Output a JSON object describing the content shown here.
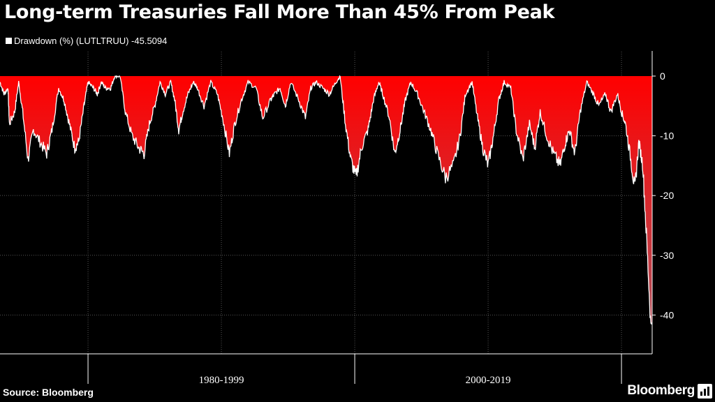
{
  "title": "Long-term Treasuries Fall More Than 45% From Peak",
  "legend": {
    "label": "Drawdown (%) (LUTLTRUU) -45.5094",
    "color": "#ffffff"
  },
  "source": "Source: Bloomberg",
  "brand": {
    "name": "Bloomberg",
    "icon": "bloomberg-terminal-icon"
  },
  "colors": {
    "background": "#000000",
    "line": "#ffffff",
    "fill_top": "#ff0000",
    "fill_bottom": "#b0505a",
    "grid": "#555555"
  },
  "chart_data": {
    "type": "area",
    "title": "Long-term Treasuries Fall More Than 45% From Peak",
    "ylabel": "",
    "xlabel": "",
    "ylim": [
      -46.5,
      0
    ],
    "xlim": [
      1973.4,
      2022.3
    ],
    "yticks": [
      0,
      -10,
      -20,
      -30,
      -40
    ],
    "ytick_labels": [
      "0",
      "-10",
      "-20",
      "-30",
      "-40"
    ],
    "x_groups": [
      {
        "label": "1980-1999",
        "start": 1980,
        "end": 2000
      },
      {
        "label": "2000-2019",
        "start": 2000,
        "end": 2020
      }
    ],
    "x_minor_ticks": [
      1980,
      1990,
      2000,
      2010,
      2020
    ],
    "grid": true,
    "legend_position": "top-left",
    "series": [
      {
        "name": "Drawdown (%) (LUTLTRUU)",
        "last_value": -45.5094,
        "x": [
          1973.4,
          1973.7,
          1974.0,
          1974.1,
          1974.5,
          1974.8,
          1975.1,
          1975.5,
          1975.9,
          1976.4,
          1976.9,
          1977.3,
          1977.8,
          1978.2,
          1978.6,
          1979.0,
          1979.3,
          1979.7,
          1980.0,
          1980.4,
          1980.7,
          1981.0,
          1981.3,
          1981.7,
          1982.0,
          1982.4,
          1982.8,
          1983.3,
          1983.8,
          1984.2,
          1984.6,
          1985.0,
          1985.4,
          1985.8,
          1986.2,
          1986.5,
          1986.8,
          1987.1,
          1987.5,
          1987.9,
          1988.2,
          1988.7,
          1989.2,
          1989.7,
          1990.1,
          1990.6,
          1991.0,
          1991.5,
          1992.0,
          1992.6,
          1993.1,
          1993.7,
          1994.0,
          1994.4,
          1994.8,
          1995.2,
          1995.8,
          1996.3,
          1996.7,
          1997.1,
          1997.6,
          1998.1,
          1998.6,
          1998.9,
          1999.3,
          1999.7,
          2000.1,
          2000.5,
          2001.0,
          2001.4,
          2001.8,
          2002.1,
          2002.6,
          2003.0,
          2003.4,
          2003.8,
          2004.2,
          2004.7,
          2005.2,
          2005.7,
          2006.2,
          2006.8,
          2007.4,
          2007.9,
          2008.3,
          2008.8,
          2009.2,
          2009.6,
          2010.0,
          2010.4,
          2010.8,
          2011.2,
          2011.7,
          2012.1,
          2012.6,
          2013.1,
          2013.5,
          2013.9,
          2014.4,
          2014.9,
          2015.4,
          2015.8,
          2016.1,
          2016.5,
          2016.9,
          2017.4,
          2017.9,
          2018.3,
          2018.8,
          2019.2,
          2019.7,
          2020.0,
          2020.3,
          2020.7,
          2021.0,
          2021.3,
          2021.6,
          2021.9,
          2022.2,
          2022.6,
          2022.9,
          2023.1,
          2023.4,
          2023.8
        ],
        "values": [
          -1,
          -3,
          -2,
          -8,
          -6,
          -1,
          -6,
          -14,
          -9,
          -11,
          -13,
          -9,
          -2,
          -4,
          -8,
          -12,
          -11,
          -5,
          -1,
          -2,
          -3,
          -1,
          -2,
          -2,
          0,
          0,
          -6,
          -10,
          -12,
          -13,
          -8,
          -5,
          -1,
          -3,
          -1,
          -4,
          -9,
          -6,
          -3,
          -1,
          -2,
          -5,
          -1,
          -3,
          -7,
          -13,
          -8,
          -4,
          -1,
          -2,
          -7,
          -4,
          -3,
          -2,
          -5,
          -1,
          -4,
          -7,
          -2,
          -1,
          -2,
          -3,
          -1,
          0,
          -8,
          -14,
          -17,
          -12,
          -9,
          -4,
          -1,
          -3,
          -7,
          -13,
          -9,
          -4,
          -1,
          -3,
          -6,
          -9,
          -13,
          -17,
          -15,
          -10,
          -3,
          -1,
          -7,
          -12,
          -15,
          -10,
          -4,
          -1,
          -2,
          -9,
          -14,
          -8,
          -12,
          -6,
          -10,
          -13,
          -15,
          -11,
          -9,
          -13,
          -6,
          -1,
          -3,
          -5,
          -3,
          -6,
          -3,
          -6,
          -8,
          -14,
          -19,
          -11,
          -15,
          -28,
          -42,
          -35,
          -43,
          -38,
          -41,
          -45.5
        ]
      }
    ]
  }
}
